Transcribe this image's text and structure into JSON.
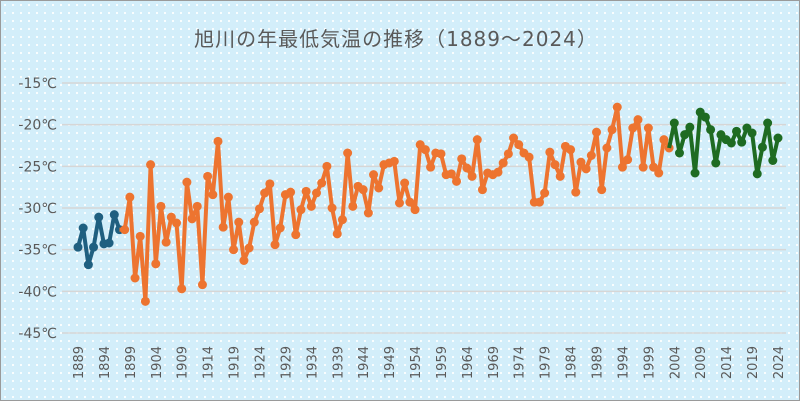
{
  "chart_data": {
    "type": "line",
    "title": "旭川の年最低気温の推移（1889～2024）",
    "xlabel": "",
    "ylabel": "",
    "xlim": [
      1889,
      2024
    ],
    "ylim": [
      -45,
      -15
    ],
    "y_ticks": [
      "-15℃",
      "-20℃",
      "-25℃",
      "-30℃",
      "-35℃",
      "-40℃",
      "-45℃"
    ],
    "y_tick_values": [
      -15,
      -20,
      -25,
      -30,
      -35,
      -40,
      -45
    ],
    "x_ticks": [
      1889,
      1894,
      1899,
      1904,
      1909,
      1914,
      1919,
      1924,
      1929,
      1934,
      1939,
      1944,
      1949,
      1954,
      1959,
      1964,
      1969,
      1974,
      1979,
      1984,
      1989,
      1994,
      1999,
      2004,
      2009,
      2014,
      2019,
      2024
    ],
    "grid": "horizontal",
    "legend": "none",
    "series": [
      {
        "color": "#1f5f80",
        "points": [
          [
            1889,
            -34.7
          ],
          [
            1890,
            -32.4
          ],
          [
            1891,
            -36.8
          ],
          [
            1892,
            -34.7
          ],
          [
            1893,
            -31.1
          ],
          [
            1894,
            -34.3
          ],
          [
            1895,
            -34.2
          ],
          [
            1896,
            -30.8
          ],
          [
            1897,
            -32.6
          ]
        ]
      },
      {
        "color": "#ed7430",
        "points": [
          [
            1898,
            -32.6
          ],
          [
            1899,
            -28.7
          ],
          [
            1900,
            -38.4
          ],
          [
            1901,
            -33.4
          ],
          [
            1902,
            -41.2
          ],
          [
            1903,
            -24.8
          ],
          [
            1904,
            -36.7
          ],
          [
            1905,
            -29.8
          ],
          [
            1906,
            -34.1
          ],
          [
            1907,
            -31.1
          ],
          [
            1908,
            -31.8
          ],
          [
            1909,
            -39.7
          ],
          [
            1910,
            -26.9
          ],
          [
            1911,
            -31.3
          ],
          [
            1912,
            -29.8
          ],
          [
            1913,
            -39.2
          ],
          [
            1914,
            -26.2
          ],
          [
            1915,
            -28.4
          ],
          [
            1916,
            -22.0
          ],
          [
            1917,
            -32.3
          ],
          [
            1918,
            -28.7
          ],
          [
            1919,
            -35.0
          ],
          [
            1920,
            -31.7
          ],
          [
            1921,
            -36.3
          ],
          [
            1922,
            -34.8
          ],
          [
            1923,
            -31.7
          ],
          [
            1924,
            -30.1
          ],
          [
            1925,
            -28.2
          ],
          [
            1926,
            -27.1
          ],
          [
            1927,
            -34.4
          ],
          [
            1928,
            -32.4
          ],
          [
            1929,
            -28.4
          ],
          [
            1930,
            -28.1
          ],
          [
            1931,
            -33.2
          ],
          [
            1932,
            -30.2
          ],
          [
            1933,
            -28.0
          ],
          [
            1934,
            -29.8
          ],
          [
            1935,
            -28.2
          ],
          [
            1936,
            -27.0
          ],
          [
            1937,
            -25.0
          ],
          [
            1938,
            -30.0
          ],
          [
            1939,
            -33.1
          ],
          [
            1940,
            -31.4
          ],
          [
            1941,
            -23.4
          ],
          [
            1942,
            -29.8
          ],
          [
            1943,
            -27.4
          ],
          [
            1944,
            -27.8
          ],
          [
            1945,
            -30.6
          ],
          [
            1946,
            -26.0
          ],
          [
            1947,
            -27.6
          ],
          [
            1948,
            -24.8
          ],
          [
            1949,
            -24.6
          ],
          [
            1950,
            -24.4
          ],
          [
            1951,
            -29.4
          ],
          [
            1952,
            -27.0
          ],
          [
            1953,
            -29.3
          ],
          [
            1954,
            -30.2
          ],
          [
            1955,
            -22.4
          ],
          [
            1956,
            -23.0
          ],
          [
            1957,
            -25.1
          ],
          [
            1958,
            -23.4
          ],
          [
            1959,
            -23.5
          ],
          [
            1960,
            -26.0
          ],
          [
            1961,
            -25.9
          ],
          [
            1962,
            -26.8
          ],
          [
            1963,
            -24.1
          ],
          [
            1964,
            -25.2
          ],
          [
            1965,
            -26.2
          ],
          [
            1966,
            -21.8
          ],
          [
            1967,
            -27.8
          ],
          [
            1968,
            -25.8
          ],
          [
            1969,
            -26.0
          ],
          [
            1970,
            -25.7
          ],
          [
            1971,
            -24.6
          ],
          [
            1972,
            -23.5
          ],
          [
            1973,
            -21.6
          ],
          [
            1974,
            -22.4
          ],
          [
            1975,
            -23.4
          ],
          [
            1976,
            -23.9
          ],
          [
            1977,
            -29.3
          ],
          [
            1978,
            -29.3
          ],
          [
            1979,
            -28.2
          ],
          [
            1980,
            -23.3
          ],
          [
            1981,
            -24.8
          ],
          [
            1982,
            -26.2
          ],
          [
            1983,
            -22.6
          ],
          [
            1984,
            -23.0
          ],
          [
            1985,
            -28.1
          ],
          [
            1986,
            -24.5
          ],
          [
            1987,
            -25.3
          ],
          [
            1988,
            -23.7
          ],
          [
            1989,
            -20.9
          ],
          [
            1990,
            -27.8
          ],
          [
            1991,
            -22.8
          ],
          [
            1992,
            -20.6
          ],
          [
            1993,
            -17.9
          ],
          [
            1994,
            -25.1
          ],
          [
            1995,
            -24.2
          ],
          [
            1996,
            -20.4
          ],
          [
            1997,
            -19.4
          ],
          [
            1998,
            -25.1
          ],
          [
            1999,
            -20.4
          ],
          [
            2000,
            -25.1
          ],
          [
            2001,
            -25.8
          ],
          [
            2002,
            -21.8
          ],
          [
            2003,
            -22.8
          ]
        ]
      },
      {
        "color": "#1e6b22",
        "points": [
          [
            2004,
            -19.8
          ],
          [
            2005,
            -23.4
          ],
          [
            2006,
            -21.2
          ],
          [
            2007,
            -20.3
          ],
          [
            2008,
            -25.8
          ],
          [
            2009,
            -18.5
          ],
          [
            2010,
            -19.1
          ],
          [
            2011,
            -20.6
          ],
          [
            2012,
            -24.6
          ],
          [
            2013,
            -21.2
          ],
          [
            2014,
            -21.8
          ],
          [
            2015,
            -22.2
          ],
          [
            2016,
            -20.8
          ],
          [
            2017,
            -22.1
          ],
          [
            2018,
            -20.4
          ],
          [
            2019,
            -21.0
          ],
          [
            2020,
            -25.9
          ],
          [
            2021,
            -22.7
          ],
          [
            2022,
            -19.8
          ],
          [
            2023,
            -24.3
          ],
          [
            2024,
            -21.6
          ]
        ]
      }
    ]
  }
}
